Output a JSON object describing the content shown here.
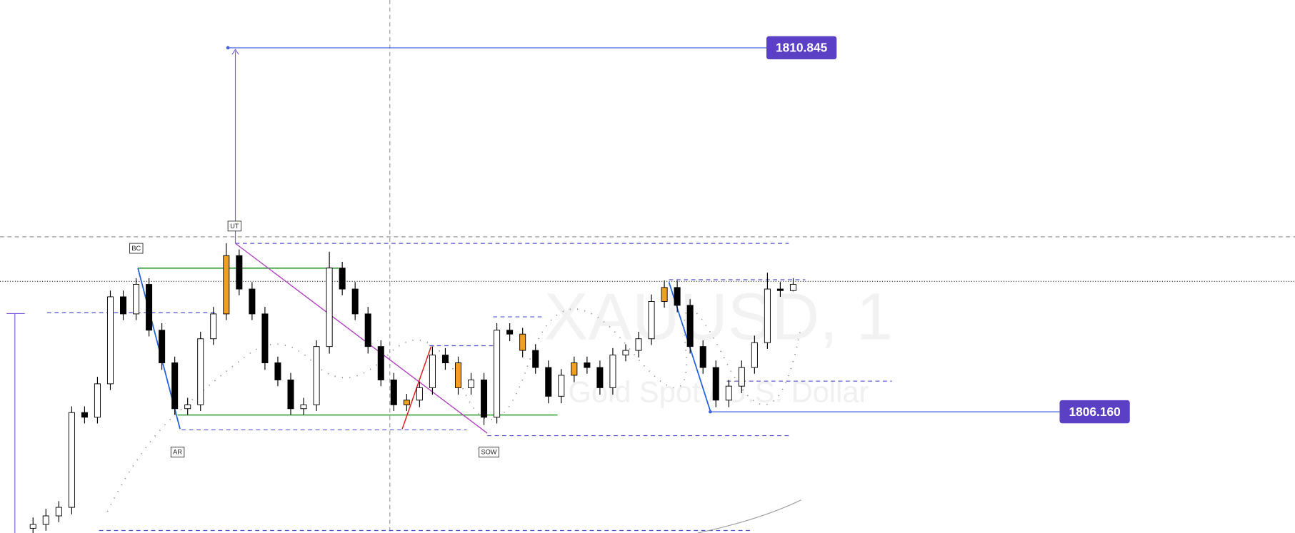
{
  "chart_data": {
    "type": "candlestick",
    "title": "XAUUSD, 1",
    "subtitle": "Gold Spot / U.S. Dollar",
    "open": [
      1804.66,
      1804.71,
      1804.82,
      1804.93,
      1806.15,
      1806.09,
      1806.52,
      1807.64,
      1807.42,
      1807.8,
      1807.21,
      1806.79,
      1806.2,
      1806.25,
      1807.1,
      1807.42,
      1808.17,
      1807.74,
      1807.42,
      1806.79,
      1806.57,
      1806.2,
      1806.25,
      1807.0,
      1808.01,
      1807.74,
      1807.42,
      1807.0,
      1806.57,
      1806.25,
      1806.31,
      1806.47,
      1806.89,
      1806.79,
      1806.47,
      1806.57,
      1806.09,
      1807.21,
      1807.16,
      1806.95,
      1806.73,
      1806.36,
      1806.63,
      1806.79,
      1806.73,
      1806.47,
      1806.89,
      1806.95,
      1807.1,
      1807.58,
      1807.76,
      1807.53,
      1807.0,
      1806.73,
      1806.31,
      1806.49,
      1806.73,
      1807.05,
      1807.74,
      1807.72
    ],
    "high": [
      1804.8,
      1804.91,
      1805.01,
      1806.23,
      1806.23,
      1806.61,
      1807.72,
      1807.72,
      1807.88,
      1807.88,
      1807.3,
      1806.87,
      1806.34,
      1807.19,
      1807.51,
      1808.33,
      1808.25,
      1807.83,
      1807.51,
      1806.87,
      1806.66,
      1806.34,
      1807.08,
      1808.22,
      1808.09,
      1807.83,
      1807.51,
      1807.08,
      1806.66,
      1806.39,
      1806.55,
      1807.0,
      1806.98,
      1806.87,
      1806.66,
      1806.66,
      1807.3,
      1807.3,
      1807.24,
      1807.03,
      1806.82,
      1806.71,
      1806.87,
      1806.87,
      1806.82,
      1806.98,
      1807.03,
      1807.19,
      1807.67,
      1807.85,
      1807.85,
      1807.61,
      1807.08,
      1806.82,
      1806.57,
      1806.82,
      1807.14,
      1807.95,
      1807.83,
      1807.88
    ],
    "low": [
      1804.58,
      1804.63,
      1804.74,
      1804.84,
      1806.01,
      1806.01,
      1806.44,
      1807.34,
      1807.34,
      1807.13,
      1806.7,
      1806.12,
      1806.12,
      1806.17,
      1807.02,
      1807.34,
      1807.66,
      1807.34,
      1806.7,
      1806.49,
      1806.12,
      1806.12,
      1806.17,
      1806.91,
      1807.66,
      1807.34,
      1806.91,
      1806.49,
      1806.17,
      1806.17,
      1806.22,
      1806.38,
      1806.7,
      1806.38,
      1806.38,
      1805.99,
      1806.01,
      1807.07,
      1806.86,
      1806.65,
      1806.27,
      1806.27,
      1806.54,
      1806.65,
      1806.38,
      1806.38,
      1806.81,
      1806.86,
      1807.02,
      1807.5,
      1807.44,
      1806.91,
      1806.65,
      1806.22,
      1806.22,
      1806.4,
      1806.65,
      1806.97,
      1807.64,
      1807.71
    ],
    "close": [
      1804.71,
      1804.82,
      1804.93,
      1806.15,
      1806.09,
      1806.52,
      1807.64,
      1807.42,
      1807.8,
      1807.21,
      1806.79,
      1806.2,
      1806.25,
      1807.1,
      1807.42,
      1808.17,
      1807.74,
      1807.42,
      1806.79,
      1806.57,
      1806.2,
      1806.25,
      1807.0,
      1808.01,
      1807.74,
      1807.42,
      1807.0,
      1806.57,
      1806.25,
      1806.31,
      1806.47,
      1806.89,
      1806.79,
      1806.47,
      1806.57,
      1806.09,
      1807.21,
      1807.16,
      1806.95,
      1806.73,
      1806.36,
      1806.63,
      1806.79,
      1806.73,
      1806.47,
      1806.89,
      1806.95,
      1807.1,
      1807.58,
      1807.76,
      1807.53,
      1807.0,
      1806.73,
      1806.31,
      1806.49,
      1806.73,
      1807.05,
      1807.74,
      1807.72,
      1807.8
    ],
    "up_color": "#ffffff",
    "down_color": "#000000",
    "highlight_color": "#f0a020",
    "highlighted": [
      15,
      29,
      33,
      38,
      42,
      49
    ],
    "ylim": [
      1804.6,
      1811.46
    ],
    "price_labels": [
      1810.845,
      {
        "value": 1806.16,
        "label": "1806.160"
      }
    ],
    "price_label_color": "#5b3fc4",
    "annotations": [
      "BC",
      "UT",
      "AR",
      "SOW"
    ]
  }
}
